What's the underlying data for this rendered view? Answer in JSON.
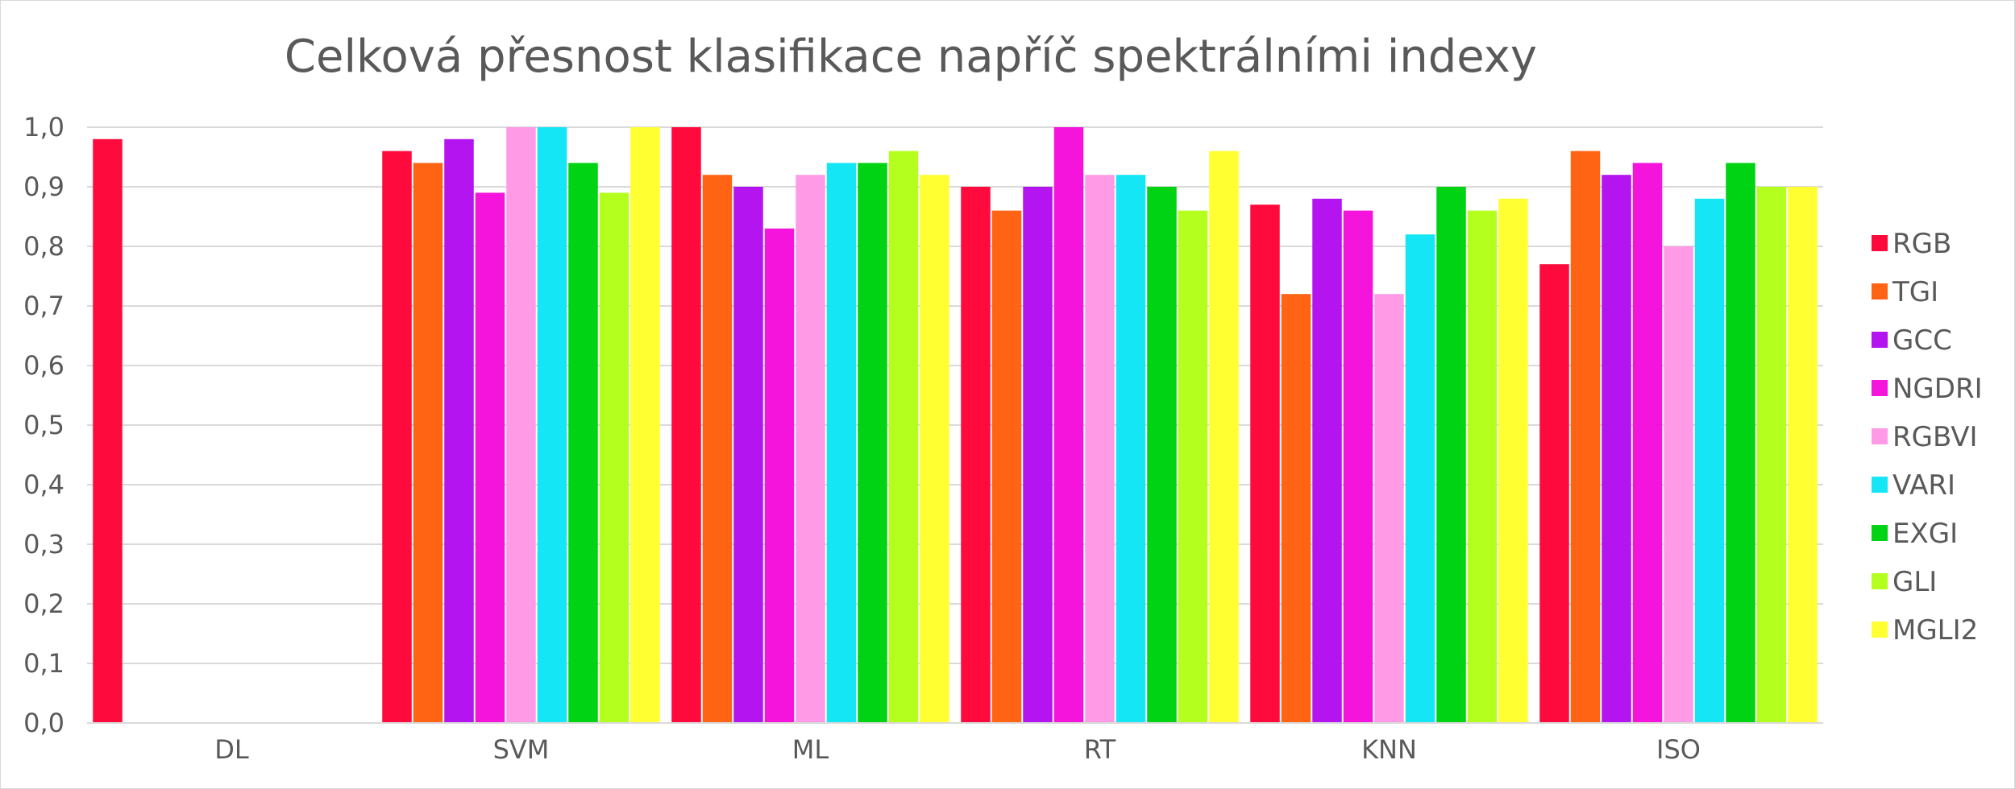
{
  "chart_data": {
    "type": "bar",
    "title": "Celková přesnost klasifikace napříč spektrálními indexy",
    "xlabel": "",
    "ylabel": "",
    "ylim": [
      0,
      1
    ],
    "y_ticks": [
      "0,0",
      "0,1",
      "0,2",
      "0,3",
      "0,4",
      "0,5",
      "0,6",
      "0,7",
      "0,8",
      "0,9",
      "1,0"
    ],
    "grid": true,
    "legend_position": "right",
    "categories": [
      "DL",
      "SVM",
      "ML",
      "RT",
      "KNN",
      "ISO"
    ],
    "series": [
      {
        "name": "RGB",
        "color": "#ff0a3c",
        "values": [
          0.98,
          0.96,
          1.0,
          0.9,
          0.87,
          0.77
        ]
      },
      {
        "name": "TGI",
        "color": "#ff6314",
        "values": [
          null,
          0.94,
          0.92,
          0.86,
          0.72,
          0.96
        ]
      },
      {
        "name": "GCC",
        "color": "#b414f0",
        "values": [
          null,
          0.98,
          0.9,
          0.9,
          0.88,
          0.92
        ]
      },
      {
        "name": "NGDRI",
        "color": "#f514dc",
        "values": [
          null,
          0.89,
          0.83,
          1.0,
          0.86,
          0.94
        ]
      },
      {
        "name": "RGBVI",
        "color": "#ff9be6",
        "values": [
          null,
          1.0,
          0.92,
          0.92,
          0.72,
          0.8
        ]
      },
      {
        "name": "VARI",
        "color": "#14e6f5",
        "values": [
          null,
          1.0,
          0.94,
          0.92,
          0.82,
          0.88
        ]
      },
      {
        "name": "EXGI",
        "color": "#00d214",
        "values": [
          null,
          0.94,
          0.94,
          0.9,
          0.9,
          0.94
        ]
      },
      {
        "name": "GLI",
        "color": "#b4ff1e",
        "values": [
          null,
          0.89,
          0.96,
          0.86,
          0.86,
          0.9
        ]
      },
      {
        "name": "MGLI2",
        "color": "#ffff32",
        "values": [
          null,
          1.0,
          0.92,
          0.96,
          0.88,
          0.9
        ]
      }
    ]
  }
}
